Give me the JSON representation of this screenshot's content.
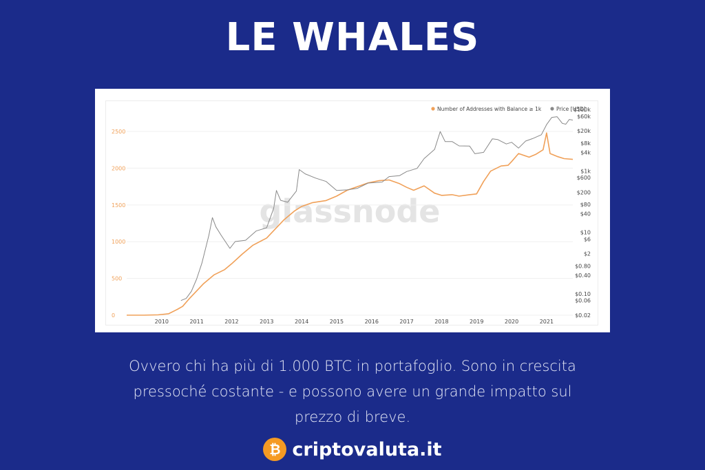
{
  "page": {
    "title": "LE WHALES",
    "caption_lines": [
      "Ovvero chi ha più di 1.000 BTC in portafoglio.  Sono in crescita",
      "pressoché costante - e possono avere un grande impatto sul",
      "prezzo di breve."
    ],
    "brand": {
      "logo_glyph": "₿",
      "name": "criptovaluta.it",
      "logo_color": "#f59a23"
    },
    "background_color": "#1b2b8a"
  },
  "chart_data": {
    "type": "line",
    "watermark": "glassnode",
    "legend_position": "top-right",
    "legend": [
      {
        "label": "Number of Addresses with Balance ≥ 1k",
        "color": "#f0a058"
      },
      {
        "label": "Price [USD]",
        "color": "#888888"
      }
    ],
    "x_ticks": [
      "2010",
      "2011",
      "2012",
      "2013",
      "2014",
      "2015",
      "2016",
      "2017",
      "2018",
      "2019",
      "2020",
      "2021"
    ],
    "x_range": [
      2009.0,
      2021.75
    ],
    "y_left": {
      "ticks": [
        0,
        500,
        1000,
        1500,
        2000,
        2500
      ],
      "range": [
        0,
        2800
      ],
      "color": "#f0a058"
    },
    "y_right": {
      "scale": "log",
      "tick_labels": [
        "$100k",
        "$60k",
        "$20k",
        "$8k",
        "$4k",
        "$1k",
        "$600",
        "$200",
        "$80",
        "$40",
        "$10",
        "$6",
        "$2",
        "$0.80",
        "$0.40",
        "$0.10",
        "$0.06",
        "$0.02"
      ],
      "tick_values": [
        100000,
        60000,
        20000,
        8000,
        4000,
        1000,
        600,
        200,
        80,
        40,
        10,
        6,
        2,
        0.8,
        0.4,
        0.1,
        0.06,
        0.02
      ],
      "range": [
        0.02,
        100000
      ]
    },
    "grid": true,
    "series": [
      {
        "name": "Number of Addresses with Balance ≥ 1k",
        "axis": "left",
        "color": "#f0a058",
        "points": [
          [
            2009.0,
            0
          ],
          [
            2009.5,
            0
          ],
          [
            2009.9,
            5
          ],
          [
            2010.2,
            20
          ],
          [
            2010.45,
            80
          ],
          [
            2010.6,
            120
          ],
          [
            2010.8,
            230
          ],
          [
            2011.0,
            330
          ],
          [
            2011.2,
            430
          ],
          [
            2011.5,
            550
          ],
          [
            2011.8,
            620
          ],
          [
            2012.0,
            700
          ],
          [
            2012.3,
            830
          ],
          [
            2012.6,
            950
          ],
          [
            2013.0,
            1050
          ],
          [
            2013.3,
            1200
          ],
          [
            2013.5,
            1300
          ],
          [
            2013.8,
            1420
          ],
          [
            2014.0,
            1480
          ],
          [
            2014.3,
            1530
          ],
          [
            2014.7,
            1560
          ],
          [
            2015.0,
            1620
          ],
          [
            2015.3,
            1700
          ],
          [
            2015.6,
            1750
          ],
          [
            2015.9,
            1800
          ],
          [
            2016.2,
            1830
          ],
          [
            2016.5,
            1840
          ],
          [
            2016.8,
            1790
          ],
          [
            2017.0,
            1740
          ],
          [
            2017.2,
            1700
          ],
          [
            2017.5,
            1760
          ],
          [
            2017.8,
            1660
          ],
          [
            2018.0,
            1630
          ],
          [
            2018.3,
            1640
          ],
          [
            2018.5,
            1620
          ],
          [
            2018.8,
            1640
          ],
          [
            2019.0,
            1650
          ],
          [
            2019.2,
            1820
          ],
          [
            2019.4,
            1960
          ],
          [
            2019.7,
            2030
          ],
          [
            2019.9,
            2040
          ],
          [
            2020.0,
            2090
          ],
          [
            2020.2,
            2200
          ],
          [
            2020.5,
            2150
          ],
          [
            2020.7,
            2190
          ],
          [
            2020.9,
            2250
          ],
          [
            2021.0,
            2480
          ],
          [
            2021.1,
            2200
          ],
          [
            2021.3,
            2160
          ],
          [
            2021.5,
            2130
          ],
          [
            2021.75,
            2120
          ]
        ]
      },
      {
        "name": "Price [USD]",
        "axis": "right",
        "color": "#888888",
        "points": [
          [
            2010.55,
            0.06
          ],
          [
            2010.7,
            0.07
          ],
          [
            2010.85,
            0.12
          ],
          [
            2011.0,
            0.3
          ],
          [
            2011.15,
            1.0
          ],
          [
            2011.35,
            8.0
          ],
          [
            2011.45,
            30.0
          ],
          [
            2011.55,
            15.0
          ],
          [
            2011.7,
            8.0
          ],
          [
            2011.95,
            3.0
          ],
          [
            2012.1,
            5.0
          ],
          [
            2012.4,
            5.5
          ],
          [
            2012.7,
            11.0
          ],
          [
            2013.0,
            14.0
          ],
          [
            2013.2,
            60.0
          ],
          [
            2013.28,
            230.0
          ],
          [
            2013.4,
            110.0
          ],
          [
            2013.6,
            95.0
          ],
          [
            2013.85,
            220.0
          ],
          [
            2013.93,
            1100.0
          ],
          [
            2014.1,
            800.0
          ],
          [
            2014.4,
            580.0
          ],
          [
            2014.7,
            450.0
          ],
          [
            2015.0,
            230.0
          ],
          [
            2015.3,
            240.0
          ],
          [
            2015.6,
            270.0
          ],
          [
            2015.9,
            400.0
          ],
          [
            2016.3,
            430.0
          ],
          [
            2016.5,
            650.0
          ],
          [
            2016.8,
            700.0
          ],
          [
            2017.0,
            950.0
          ],
          [
            2017.3,
            1200.0
          ],
          [
            2017.5,
            2500.0
          ],
          [
            2017.8,
            5000.0
          ],
          [
            2017.96,
            19000.0
          ],
          [
            2018.1,
            9000.0
          ],
          [
            2018.3,
            9000.0
          ],
          [
            2018.5,
            6500.0
          ],
          [
            2018.8,
            6400.0
          ],
          [
            2018.95,
            3600.0
          ],
          [
            2019.2,
            4000.0
          ],
          [
            2019.45,
            11000.0
          ],
          [
            2019.6,
            10500.0
          ],
          [
            2019.85,
            7500.0
          ],
          [
            2020.0,
            8500.0
          ],
          [
            2020.2,
            5500.0
          ],
          [
            2020.4,
            9300.0
          ],
          [
            2020.6,
            11200.0
          ],
          [
            2020.85,
            15000.0
          ],
          [
            2021.0,
            32000.0
          ],
          [
            2021.15,
            55000.0
          ],
          [
            2021.3,
            58000.0
          ],
          [
            2021.45,
            35000.0
          ],
          [
            2021.55,
            33000.0
          ],
          [
            2021.65,
            47000.0
          ],
          [
            2021.75,
            45000.0
          ]
        ]
      }
    ]
  }
}
